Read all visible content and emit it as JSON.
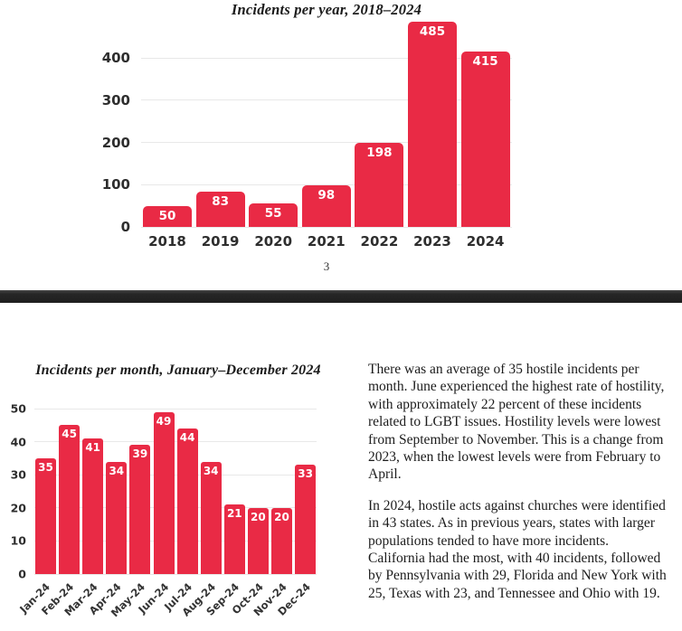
{
  "colors": {
    "bar": "#e92a45",
    "gridline": "#e8e8e8",
    "axis_text": "#2e2e2e",
    "divider": "#222222",
    "body_text": "#1c1c1c",
    "page_background": "#ffffff"
  },
  "page_top": {
    "page_number": "3"
  },
  "page_bottom": {
    "paragraphs": [
      "There was an average of 35 hostile incidents per month. June experienced the highest rate of hostility, with approximately 22 percent of these incidents related to LGBT issues. Hostility levels were lowest from September to November. This is a change from 2023, when the lowest levels were from February to April.",
      "In 2024, hostile acts against churches were identified in 43 states. As in previous years, states with larger populations tended to have more incidents. California had the most, with 40 incidents, followed by Pennsylvania with 29, Florida and New York with 25, Texas with 23, and Tennessee and Ohio with 19."
    ]
  },
  "chart_data": [
    {
      "type": "bar",
      "title": "Incidents per year, 2018–2024",
      "categories": [
        "2018",
        "2019",
        "2020",
        "2021",
        "2022",
        "2023",
        "2024"
      ],
      "values": [
        50,
        83,
        55,
        98,
        198,
        485,
        415
      ],
      "y_ticks": [
        0,
        100,
        200,
        300,
        400
      ],
      "ylim": [
        0,
        490
      ],
      "xlabel": "",
      "ylabel": "",
      "bar_color": "#e92a45",
      "grid": true,
      "legend": false,
      "value_labels": "inside-top-white"
    },
    {
      "type": "bar",
      "title": "Incidents per month, January–December 2024",
      "categories": [
        "Jan-24",
        "Feb-24",
        "Mar-24",
        "Apr-24",
        "May-24",
        "Jun-24",
        "Jul-24",
        "Aug-24",
        "Sep-24",
        "Oct-24",
        "Nov-24",
        "Dec-24"
      ],
      "values": [
        35,
        45,
        41,
        34,
        39,
        49,
        44,
        34,
        21,
        20,
        20,
        33
      ],
      "y_ticks": [
        0,
        10,
        20,
        30,
        40,
        50
      ],
      "ylim": [
        0,
        50
      ],
      "xlabel": "",
      "ylabel": "",
      "bar_color": "#e92a45",
      "grid": true,
      "legend": false,
      "value_labels": "inside-top-white",
      "x_tick_rotation": -45
    }
  ]
}
